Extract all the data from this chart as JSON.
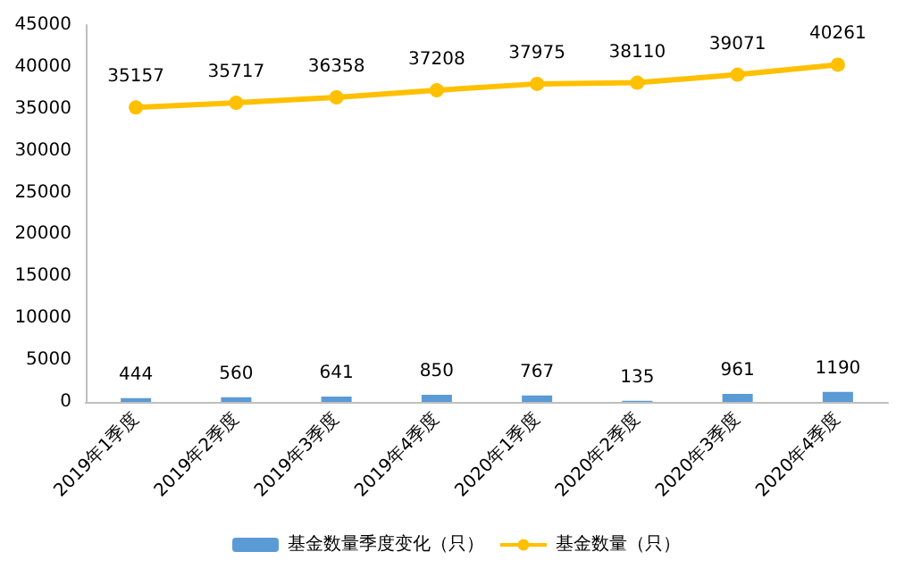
{
  "chart_data": {
    "type": "bar",
    "categories": [
      "2019年1季度",
      "2019年2季度",
      "2019年3季度",
      "2019年4季度",
      "2020年1季度",
      "2020年2季度",
      "2020年3季度",
      "2020年4季度"
    ],
    "series": [
      {
        "name": "基金数量季度变化（只）",
        "color": "#5b9bd5",
        "values": [
          444,
          560,
          641,
          850,
          767,
          135,
          961,
          1190
        ]
      },
      {
        "name": "基金数量（只）",
        "type": "line",
        "color": "#ffc000",
        "values": [
          35157,
          35717,
          36358,
          37208,
          37975,
          38110,
          39071,
          40261
        ]
      }
    ],
    "ylim": [
      0,
      45000
    ],
    "yticks": [
      0,
      5000,
      10000,
      15000,
      20000,
      25000,
      30000,
      35000,
      40000,
      45000
    ],
    "data_labels": true,
    "grid": false,
    "legend": "bottom",
    "marker": "circle"
  }
}
